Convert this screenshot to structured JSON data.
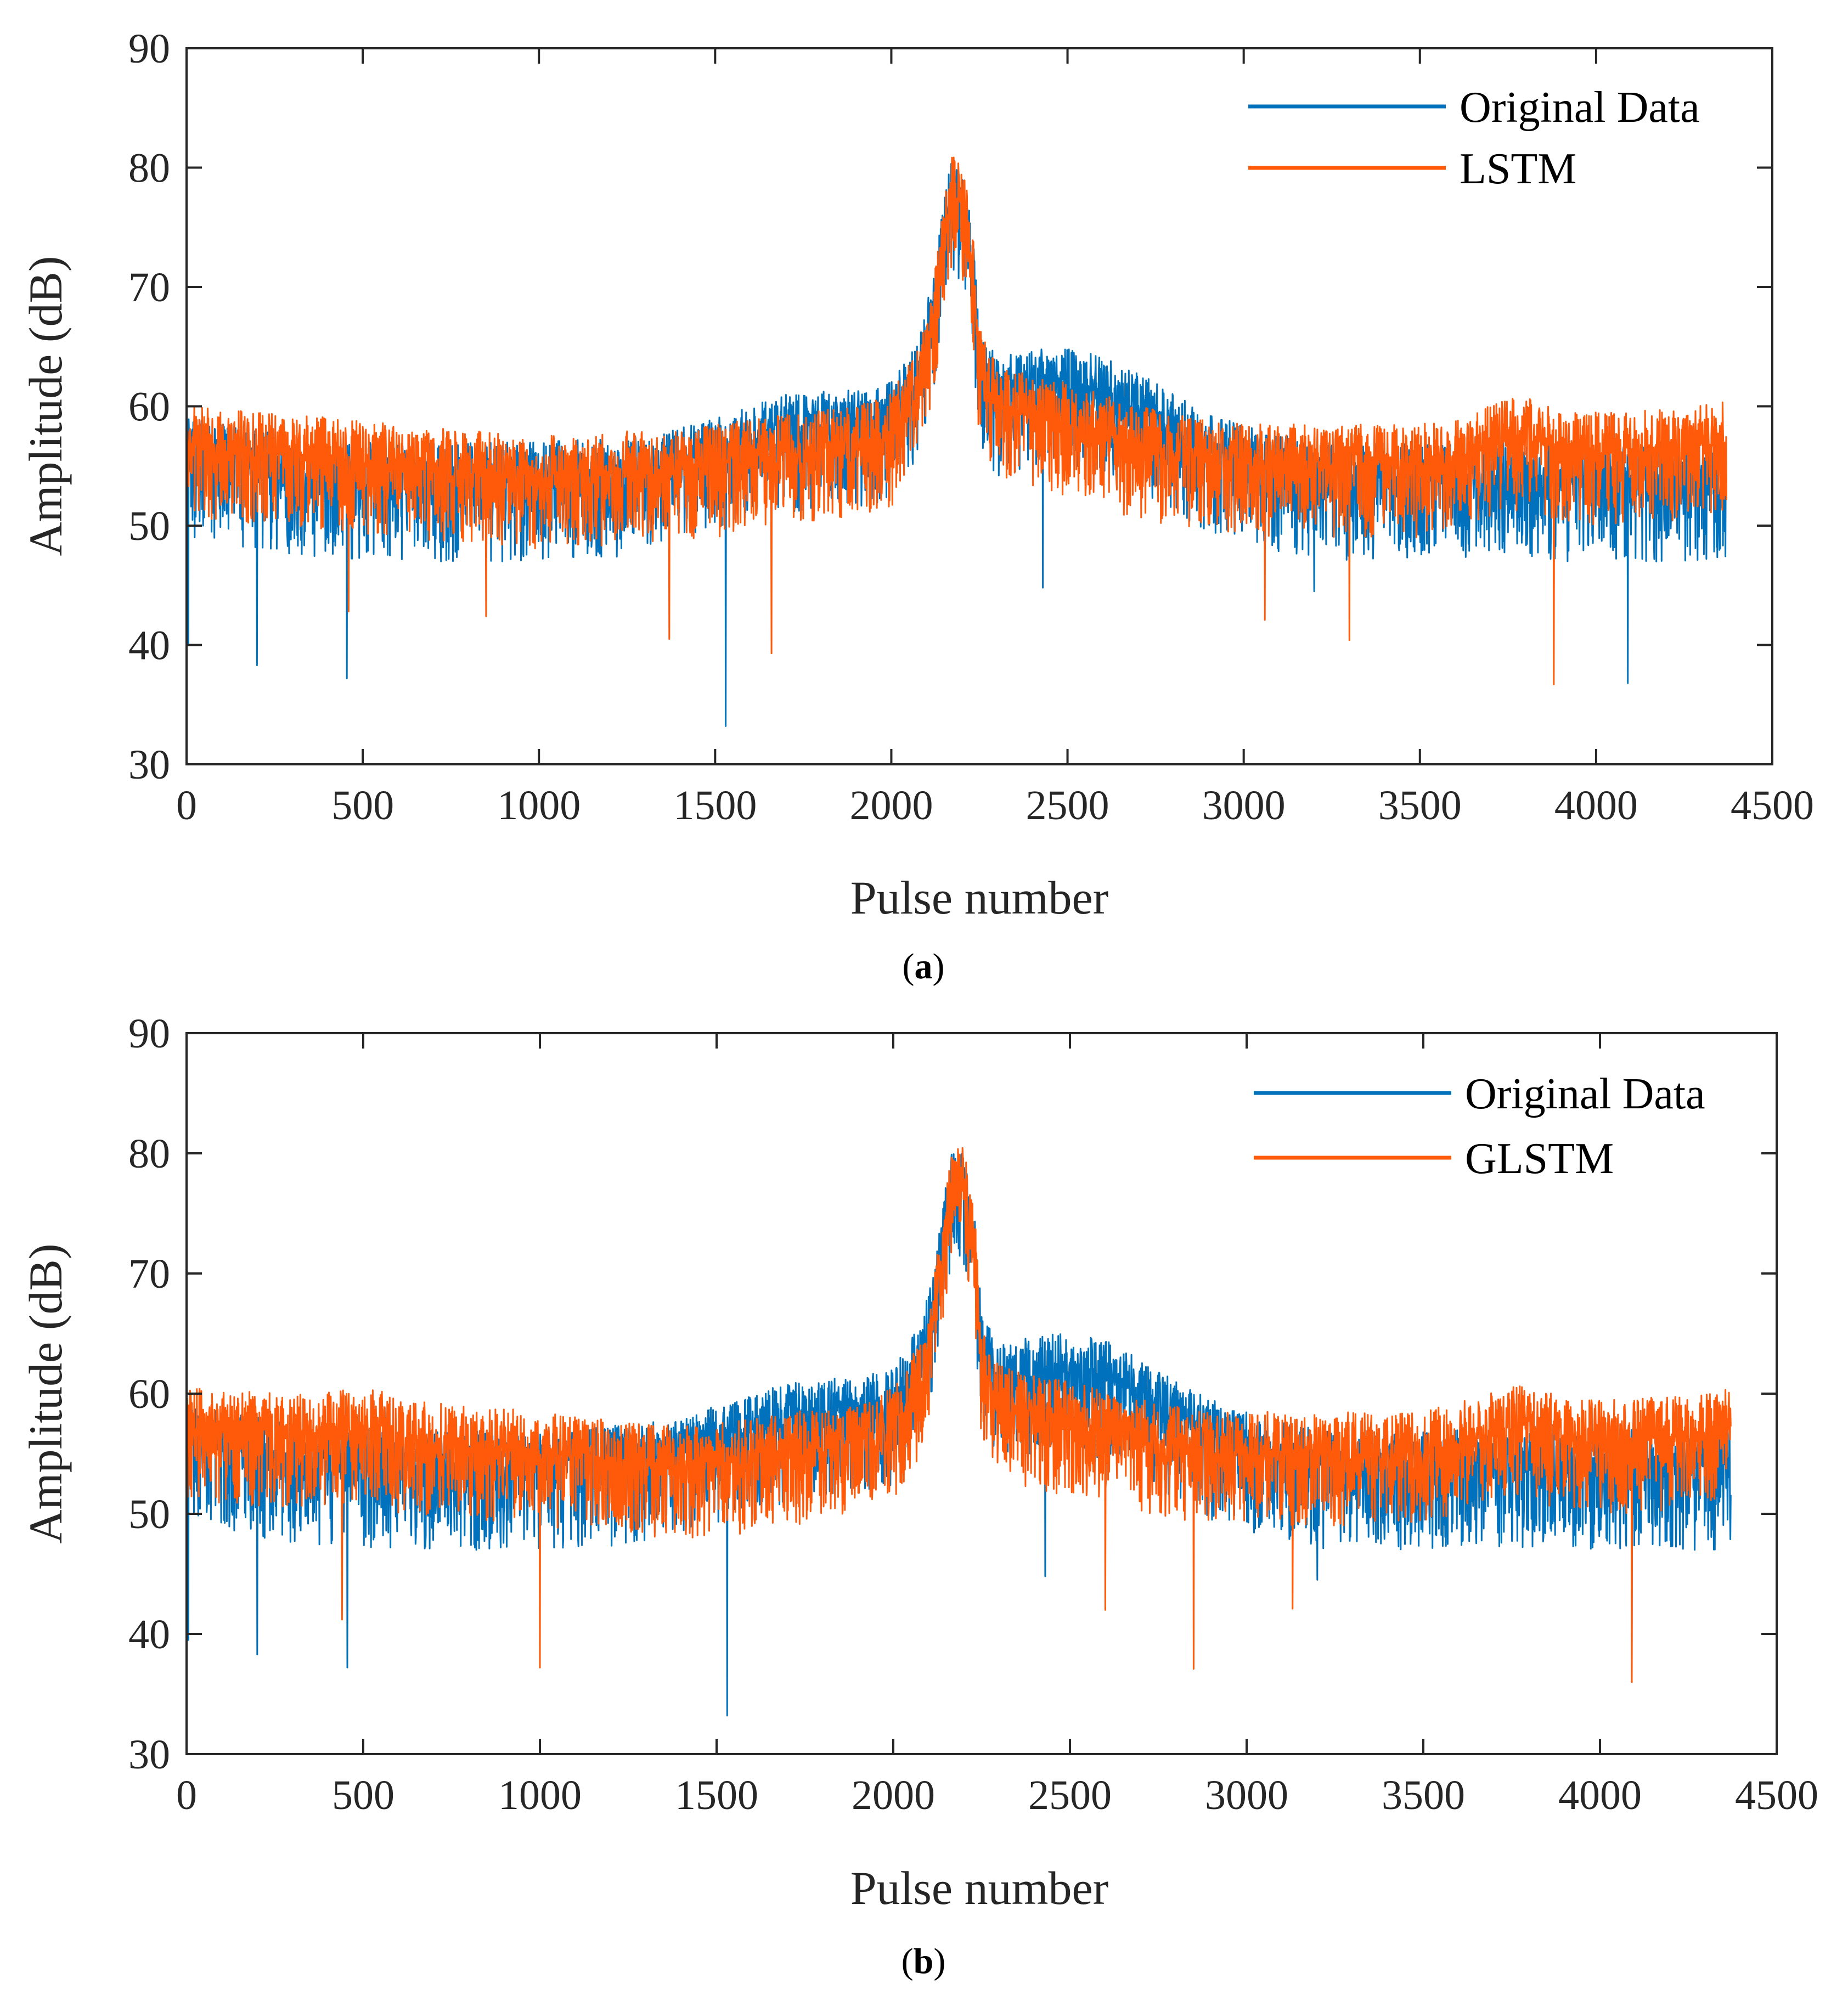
{
  "colors": {
    "original": "#0072BD",
    "model": "#FF5A0A",
    "axis": "#262626",
    "background": "#ffffff"
  },
  "chart_data": [
    {
      "type": "line",
      "caption_letter": "a",
      "xlabel": "Pulse number",
      "ylabel": "Amplitude (dB)",
      "xlim": [
        0,
        4500
      ],
      "ylim": [
        30,
        90
      ],
      "xticks": [
        0,
        500,
        1000,
        1500,
        2000,
        2500,
        3000,
        3500,
        4000,
        4500
      ],
      "yticks": [
        30,
        40,
        50,
        60,
        70,
        80,
        90
      ],
      "x_range": [
        0,
        4370
      ],
      "legend_position": "top-right",
      "series": [
        {
          "name": "Original Data",
          "color": "#0072BD",
          "envelope": [
            [
              0,
              56
            ],
            [
              300,
              54.5
            ],
            [
              600,
              54
            ],
            [
              1000,
              54
            ],
            [
              1300,
              54.5
            ],
            [
              1500,
              56
            ],
            [
              1700,
              58
            ],
            [
              1900,
              58.5
            ],
            [
              2000,
              59
            ],
            [
              2080,
              63
            ],
            [
              2120,
              68
            ],
            [
              2150,
              75
            ],
            [
              2170,
              78
            ],
            [
              2200,
              77
            ],
            [
              2230,
              72
            ],
            [
              2250,
              64
            ],
            [
              2300,
              61
            ],
            [
              2400,
              62
            ],
            [
              2500,
              62
            ],
            [
              2600,
              61.5
            ],
            [
              2700,
              60
            ],
            [
              2800,
              58
            ],
            [
              2900,
              56.5
            ],
            [
              3000,
              55.5
            ],
            [
              3200,
              54
            ],
            [
              3500,
              54
            ],
            [
              3800,
              54
            ],
            [
              4100,
              54
            ],
            [
              4370,
              54
            ]
          ],
          "noise_low": 7,
          "noise_high": 3,
          "spikes": [
            [
              5,
              40
            ],
            [
              200,
              38.3
            ],
            [
              455,
              37.2
            ],
            [
              1530,
              33.2
            ],
            [
              2430,
              44.8
            ],
            [
              3200,
              44.5
            ],
            [
              4090,
              36.8
            ]
          ]
        },
        {
          "name": "LSTM",
          "color": "#FF5A0A",
          "envelope": [
            [
              0,
              56.5
            ],
            [
              300,
              56
            ],
            [
              600,
              55
            ],
            [
              1000,
              54
            ],
            [
              1300,
              54.5
            ],
            [
              1500,
              55
            ],
            [
              1700,
              56
            ],
            [
              1900,
              56.5
            ],
            [
              2000,
              57.5
            ],
            [
              2080,
              62
            ],
            [
              2120,
              67
            ],
            [
              2150,
              74
            ],
            [
              2170,
              77.5
            ],
            [
              2200,
              77
            ],
            [
              2230,
              72
            ],
            [
              2250,
              63
            ],
            [
              2300,
              60
            ],
            [
              2400,
              59
            ],
            [
              2500,
              58.5
            ],
            [
              2600,
              57.5
            ],
            [
              2700,
              56.5
            ],
            [
              2800,
              56
            ],
            [
              2900,
              55.5
            ],
            [
              3000,
              55
            ],
            [
              3200,
              55
            ],
            [
              3500,
              55
            ],
            [
              3800,
              57.5
            ],
            [
              3900,
              56
            ],
            [
              4100,
              56
            ],
            [
              4370,
              57
            ]
          ],
          "noise_low": 6,
          "noise_high": 3.5,
          "spikes": [
            [
              460,
              42.8
            ],
            [
              850,
              42.4
            ],
            [
              1370,
              40.5
            ],
            [
              1660,
              39.3
            ],
            [
              3060,
              42.1
            ],
            [
              3300,
              40.4
            ],
            [
              3880,
              36.7
            ]
          ]
        }
      ]
    },
    {
      "type": "line",
      "caption_letter": "b",
      "xlabel": "Pulse number",
      "ylabel": "Amplitude (dB)",
      "xlim": [
        0,
        4500
      ],
      "ylim": [
        30,
        90
      ],
      "xticks": [
        0,
        500,
        1000,
        1500,
        2000,
        2500,
        3000,
        3500,
        4000,
        4500
      ],
      "yticks": [
        30,
        40,
        50,
        60,
        70,
        80,
        90
      ],
      "x_range": [
        0,
        4370
      ],
      "legend_position": "top-right",
      "series": [
        {
          "name": "Original Data",
          "color": "#0072BD",
          "envelope": [
            [
              0,
              56
            ],
            [
              300,
              54.5
            ],
            [
              600,
              54
            ],
            [
              1000,
              54
            ],
            [
              1300,
              54.5
            ],
            [
              1500,
              56
            ],
            [
              1700,
              58
            ],
            [
              1900,
              58.5
            ],
            [
              2000,
              59
            ],
            [
              2080,
              63
            ],
            [
              2120,
              68
            ],
            [
              2150,
              75
            ],
            [
              2170,
              78
            ],
            [
              2200,
              77
            ],
            [
              2230,
              72
            ],
            [
              2250,
              64
            ],
            [
              2300,
              61
            ],
            [
              2400,
              62
            ],
            [
              2500,
              62
            ],
            [
              2600,
              61.5
            ],
            [
              2700,
              60
            ],
            [
              2800,
              58
            ],
            [
              2900,
              56.5
            ],
            [
              3000,
              55.5
            ],
            [
              3200,
              54
            ],
            [
              3500,
              54
            ],
            [
              3800,
              54
            ],
            [
              4100,
              54
            ],
            [
              4370,
              54
            ]
          ],
          "noise_low": 7,
          "noise_high": 3,
          "spikes": [
            [
              5,
              39.5
            ],
            [
              200,
              38.3
            ],
            [
              455,
              37.2
            ],
            [
              1530,
              33.2
            ],
            [
              2430,
              44.8
            ],
            [
              3200,
              44.5
            ],
            [
              4090,
              36.8
            ]
          ]
        },
        {
          "name": "GLSTM",
          "color": "#FF5A0A",
          "envelope": [
            [
              0,
              57
            ],
            [
              300,
              56.5
            ],
            [
              550,
              57
            ],
            [
              600,
              56
            ],
            [
              1000,
              55
            ],
            [
              1300,
              54
            ],
            [
              1500,
              54
            ],
            [
              1700,
              55
            ],
            [
              1900,
              55.5
            ],
            [
              2000,
              57
            ],
            [
              2080,
              61
            ],
            [
              2120,
              67
            ],
            [
              2150,
              74
            ],
            [
              2170,
              77.5
            ],
            [
              2200,
              77
            ],
            [
              2230,
              72
            ],
            [
              2250,
              62
            ],
            [
              2300,
              59
            ],
            [
              2400,
              58
            ],
            [
              2500,
              57.5
            ],
            [
              2600,
              57
            ],
            [
              2700,
              56
            ],
            [
              2800,
              55.5
            ],
            [
              2900,
              55
            ],
            [
              3000,
              55
            ],
            [
              3200,
              55
            ],
            [
              3500,
              55
            ],
            [
              3800,
              57.5
            ],
            [
              3900,
              56
            ],
            [
              4100,
              56
            ],
            [
              4370,
              57
            ]
          ],
          "noise_low": 6,
          "noise_high": 3.5,
          "spikes": [
            [
              440,
              41.2
            ],
            [
              1000,
              37.2
            ],
            [
              2600,
              42
            ],
            [
              2850,
              37.1
            ],
            [
              3130,
              42.1
            ],
            [
              4090,
              36
            ]
          ]
        }
      ]
    }
  ]
}
